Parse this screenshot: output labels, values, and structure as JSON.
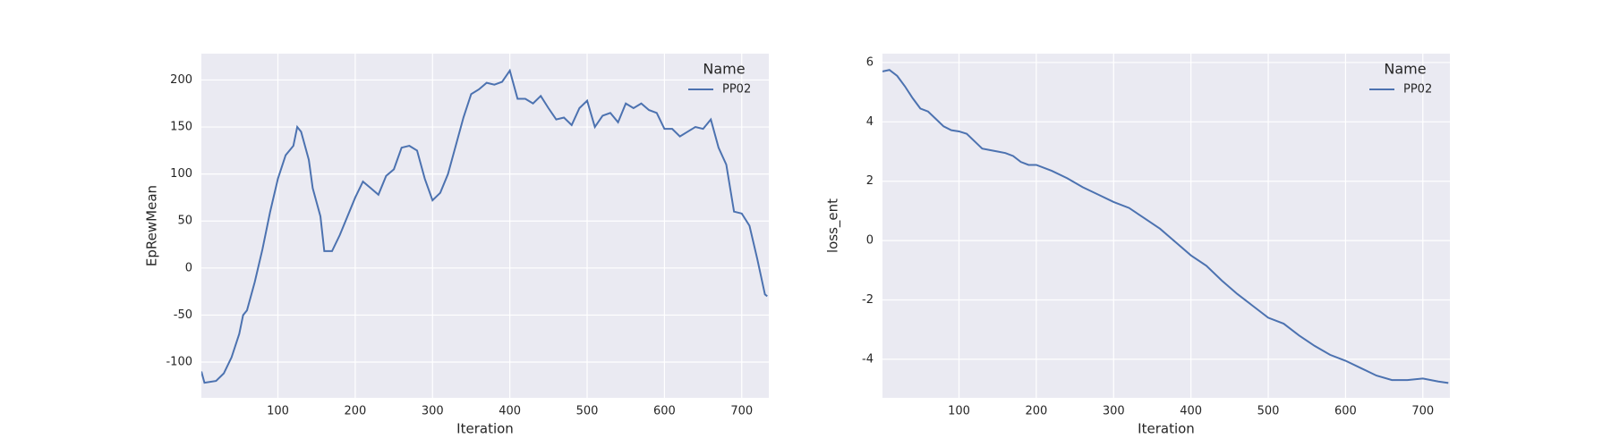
{
  "chart_data": [
    {
      "type": "line",
      "xlabel": "Iteration",
      "ylabel": "EpRewMean",
      "x": [
        1,
        5,
        20,
        30,
        40,
        50,
        55,
        60,
        70,
        80,
        90,
        100,
        110,
        120,
        125,
        130,
        140,
        145,
        155,
        160,
        170,
        180,
        190,
        200,
        210,
        220,
        230,
        240,
        250,
        260,
        270,
        280,
        290,
        300,
        310,
        320,
        330,
        340,
        350,
        360,
        370,
        380,
        390,
        400,
        410,
        420,
        430,
        440,
        450,
        460,
        470,
        480,
        490,
        500,
        510,
        520,
        530,
        540,
        550,
        560,
        570,
        580,
        590,
        600,
        610,
        620,
        630,
        640,
        650,
        660,
        670,
        680,
        690,
        700,
        710,
        720,
        730,
        733
      ],
      "series": [
        {
          "name": "PP02",
          "color": "#4c72b0",
          "values": [
            -110,
            -122,
            -120,
            -112,
            -95,
            -70,
            -50,
            -45,
            -15,
            20,
            60,
            95,
            120,
            130,
            150,
            145,
            115,
            85,
            55,
            18,
            18,
            35,
            55,
            75,
            92,
            85,
            78,
            98,
            105,
            128,
            130,
            125,
            95,
            72,
            80,
            100,
            130,
            160,
            185,
            190,
            197,
            195,
            198,
            210,
            180,
            180,
            175,
            183,
            170,
            158,
            160,
            152,
            170,
            178,
            150,
            162,
            165,
            155,
            175,
            170,
            175,
            168,
            165,
            148,
            148,
            140,
            145,
            150,
            148,
            158,
            128,
            110,
            60,
            58,
            45,
            10,
            -28,
            -30
          ]
        }
      ],
      "xlim": [
        1,
        735
      ],
      "ylim": [
        -138,
        228
      ],
      "xticks": [
        100,
        200,
        300,
        400,
        500,
        600,
        700
      ],
      "yticks": [
        -100,
        -50,
        0,
        50,
        100,
        150,
        200
      ],
      "grid": true,
      "legend_title": "Name",
      "legend": "upper right"
    },
    {
      "type": "line",
      "xlabel": "Iteration",
      "ylabel": "loss_ent",
      "x": [
        1,
        10,
        20,
        30,
        40,
        50,
        60,
        70,
        80,
        90,
        100,
        110,
        120,
        130,
        140,
        150,
        160,
        170,
        180,
        190,
        200,
        220,
        240,
        260,
        280,
        300,
        320,
        340,
        360,
        380,
        400,
        420,
        440,
        460,
        480,
        500,
        520,
        540,
        560,
        580,
        600,
        620,
        640,
        660,
        680,
        700,
        720,
        733
      ],
      "series": [
        {
          "name": "PP02",
          "color": "#4c72b0",
          "values": [
            5.7,
            5.75,
            5.55,
            5.2,
            4.8,
            4.45,
            4.35,
            4.1,
            3.85,
            3.72,
            3.68,
            3.6,
            3.35,
            3.1,
            3.05,
            3.0,
            2.95,
            2.85,
            2.65,
            2.55,
            2.55,
            2.35,
            2.1,
            1.8,
            1.55,
            1.3,
            1.1,
            0.75,
            0.4,
            -0.05,
            -0.5,
            -0.85,
            -1.35,
            -1.8,
            -2.2,
            -2.6,
            -2.8,
            -3.2,
            -3.55,
            -3.85,
            -4.05,
            -4.3,
            -4.55,
            -4.7,
            -4.7,
            -4.65,
            -4.75,
            -4.8
          ]
        }
      ],
      "xlim": [
        1,
        735
      ],
      "ylim": [
        -5.3,
        6.3
      ],
      "xticks": [
        100,
        200,
        300,
        400,
        500,
        600,
        700
      ],
      "yticks": [
        -4,
        -2,
        0,
        2,
        4,
        6
      ],
      "grid": true,
      "legend_title": "Name",
      "legend": "upper right"
    }
  ]
}
